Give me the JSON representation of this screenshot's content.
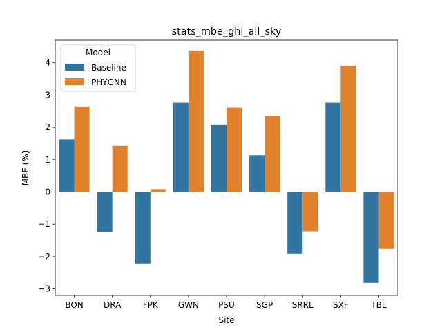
{
  "chart_data": {
    "type": "bar",
    "title": "stats_mbe_ghi_all_sky",
    "xlabel": "Site",
    "ylabel": "MBE (%)",
    "categories": [
      "BON",
      "DRA",
      "FPK",
      "GWN",
      "PSU",
      "SGP",
      "SRRL",
      "SXF",
      "TBL"
    ],
    "series": [
      {
        "name": "Baseline",
        "color": "#3274a1",
        "values": [
          1.63,
          -1.24,
          -2.21,
          2.76,
          2.07,
          1.14,
          -1.91,
          2.76,
          -2.81
        ]
      },
      {
        "name": "PHYGNN",
        "color": "#e1812c",
        "values": [
          2.65,
          1.43,
          0.09,
          4.36,
          2.61,
          2.35,
          -1.22,
          3.91,
          -1.76
        ]
      }
    ],
    "ylim": [
      -3.2,
      4.7
    ],
    "yticks": [
      -3,
      -2,
      -1,
      0,
      1,
      2,
      3,
      4
    ],
    "ytick_labels": [
      "−3",
      "−2",
      "−1",
      "0",
      "1",
      "2",
      "3",
      "4"
    ],
    "legend": {
      "title": "Model",
      "placement": "top-left"
    },
    "grid": false
  }
}
